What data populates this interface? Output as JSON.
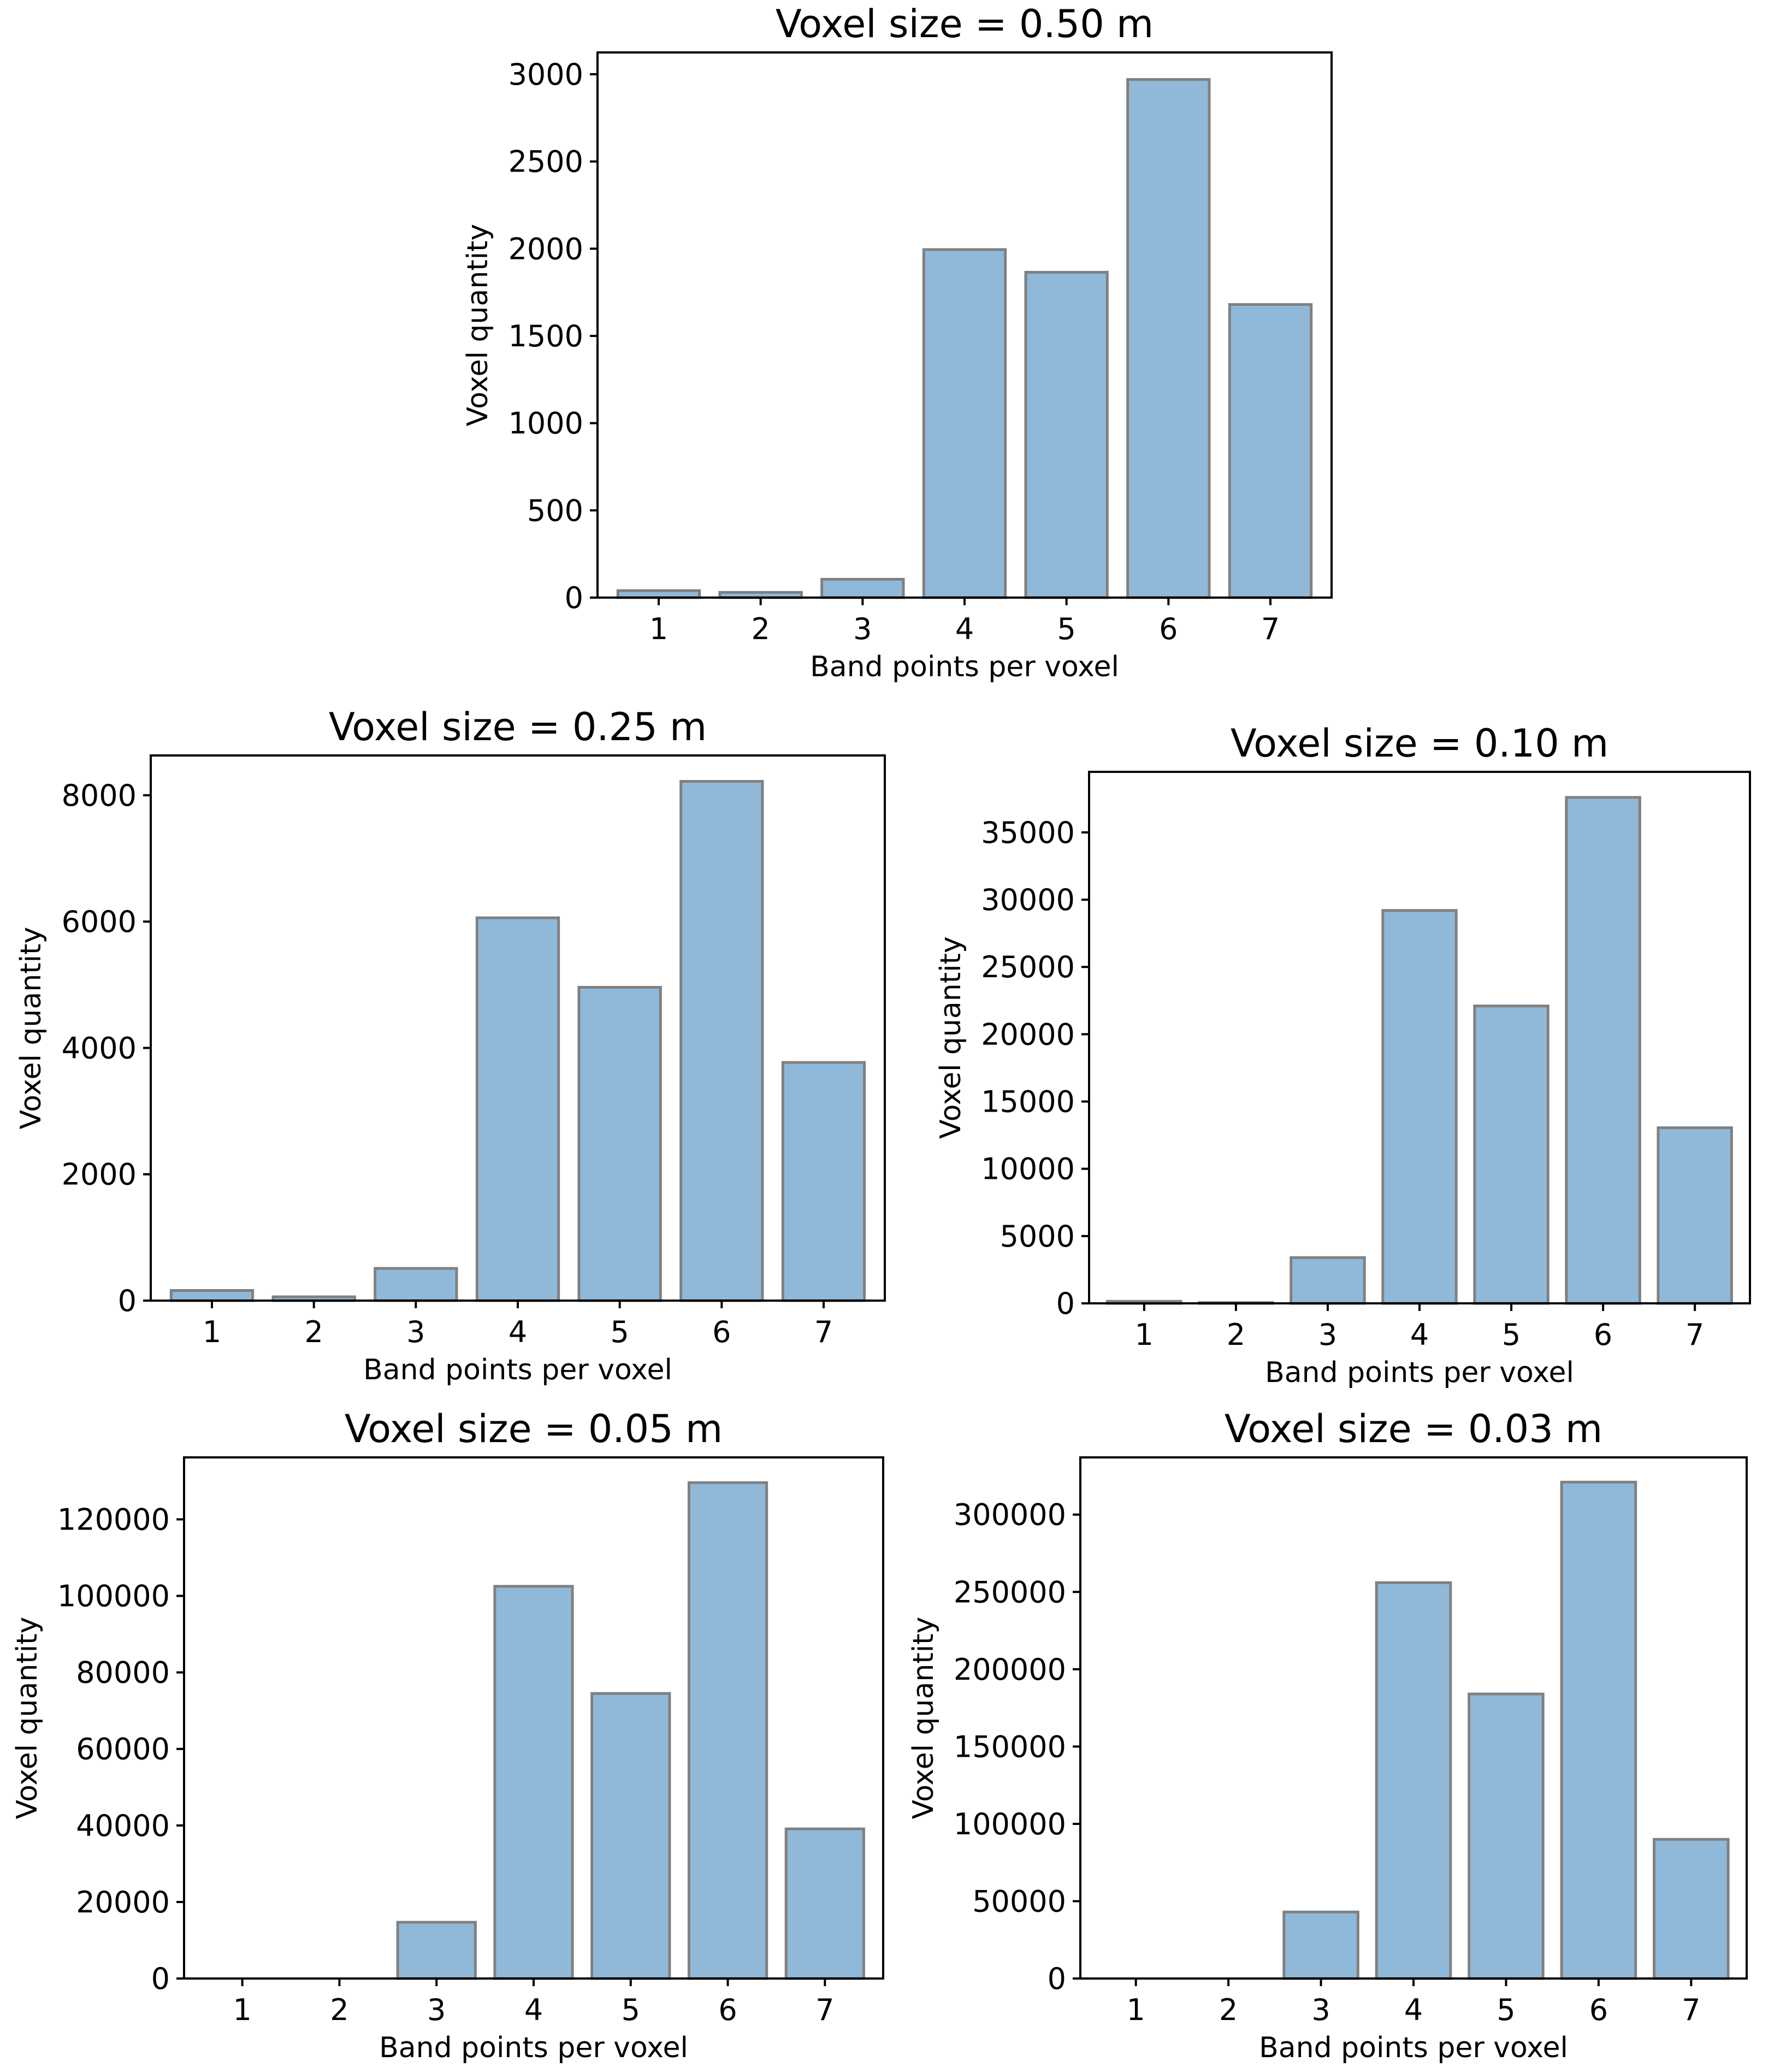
{
  "figure": {
    "bar_color": "#90b9d9",
    "edge_color": "#808080"
  },
  "chart_data": [
    {
      "type": "bar",
      "title": "Voxel size = 0.50 m",
      "xlabel": "Band points per voxel",
      "ylabel": "Voxel quantity",
      "categories": [
        "1",
        "2",
        "3",
        "4",
        "5",
        "6",
        "7"
      ],
      "values": [
        40,
        30,
        105,
        1995,
        1865,
        2970,
        1680
      ],
      "ylim": [
        0,
        3125
      ],
      "yticks": [
        0,
        500,
        1000,
        1500,
        2000,
        2500,
        3000
      ]
    },
    {
      "type": "bar",
      "title": "Voxel size = 0.25 m",
      "xlabel": "Band points per voxel",
      "ylabel": "Voxel quantity",
      "categories": [
        "1",
        "2",
        "3",
        "4",
        "5",
        "6",
        "7"
      ],
      "values": [
        160,
        60,
        510,
        6060,
        4960,
        8220,
        3770
      ],
      "ylim": [
        0,
        8630
      ],
      "yticks": [
        0,
        2000,
        4000,
        6000,
        8000
      ]
    },
    {
      "type": "bar",
      "title": "Voxel size = 0.10 m",
      "xlabel": "Band points per voxel",
      "ylabel": "Voxel quantity",
      "categories": [
        "1",
        "2",
        "3",
        "4",
        "5",
        "6",
        "7"
      ],
      "values": [
        150,
        60,
        3400,
        29200,
        22100,
        37600,
        13050
      ],
      "ylim": [
        0,
        39500
      ],
      "yticks": [
        0,
        5000,
        10000,
        15000,
        20000,
        25000,
        30000,
        35000
      ]
    },
    {
      "type": "bar",
      "title": "Voxel size = 0.05 m",
      "xlabel": "Band points per voxel",
      "ylabel": "Voxel quantity",
      "categories": [
        "1",
        "2",
        "3",
        "4",
        "5",
        "6",
        "7"
      ],
      "values": [
        0,
        0,
        14700,
        102500,
        74500,
        129600,
        39100
      ],
      "ylim": [
        0,
        136200
      ],
      "yticks": [
        0,
        20000,
        40000,
        60000,
        80000,
        100000,
        120000
      ]
    },
    {
      "type": "bar",
      "title": "Voxel size = 0.03 m",
      "xlabel": "Band points per voxel",
      "ylabel": "Voxel quantity",
      "categories": [
        "1",
        "2",
        "3",
        "4",
        "5",
        "6",
        "7"
      ],
      "values": [
        0,
        0,
        43000,
        256000,
        184000,
        321000,
        90000
      ],
      "ylim": [
        0,
        337000
      ],
      "yticks": [
        0,
        50000,
        100000,
        150000,
        200000,
        250000,
        300000
      ]
    }
  ]
}
